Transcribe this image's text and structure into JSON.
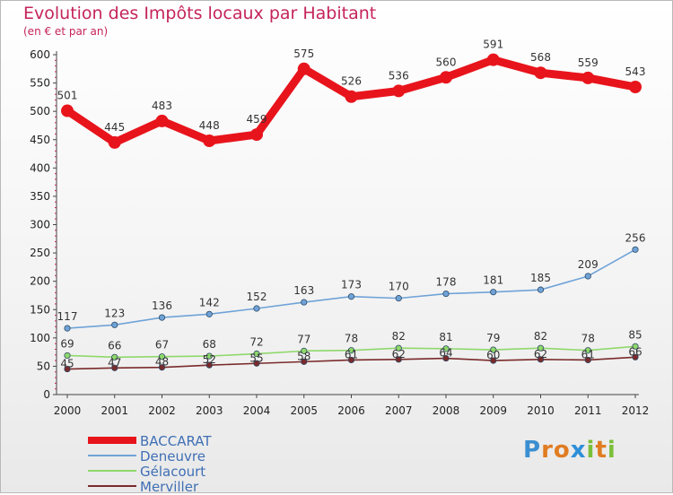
{
  "title": "Evolution des Impôts locaux par Habitant",
  "subtitle": "(en € et par an)",
  "brand": "Proxiti",
  "chart_data": {
    "type": "line",
    "title": "Evolution des Impôts locaux par Habitant",
    "subtitle": "(en € et par an)",
    "xlabel": "",
    "ylabel": "",
    "categories": [
      "2000",
      "2001",
      "2002",
      "2003",
      "2004",
      "2005",
      "2006",
      "2007",
      "2008",
      "2009",
      "2010",
      "2011",
      "2012"
    ],
    "ylim": [
      0,
      600
    ],
    "yticks": [
      0,
      50,
      100,
      150,
      200,
      250,
      300,
      350,
      400,
      450,
      500,
      550,
      600
    ],
    "grid": false,
    "legend_position": "bottom-left",
    "series": [
      {
        "name": "BACCARAT",
        "color": "#e8141c",
        "values": [
          501,
          445,
          483,
          448,
          459,
          575,
          526,
          536,
          560,
          591,
          568,
          559,
          543
        ]
      },
      {
        "name": "Deneuvre",
        "color": "#6fa3d8",
        "values": [
          117,
          123,
          136,
          142,
          152,
          163,
          173,
          170,
          178,
          181,
          185,
          209,
          256
        ]
      },
      {
        "name": "Gélacourt",
        "color": "#8fd86b",
        "values": [
          69,
          66,
          67,
          68,
          72,
          77,
          78,
          82,
          81,
          79,
          82,
          78,
          85
        ]
      },
      {
        "name": "Merviller",
        "color": "#7a2a2a",
        "values": [
          45,
          47,
          48,
          52,
          55,
          58,
          61,
          62,
          64,
          60,
          62,
          61,
          66
        ]
      }
    ]
  }
}
